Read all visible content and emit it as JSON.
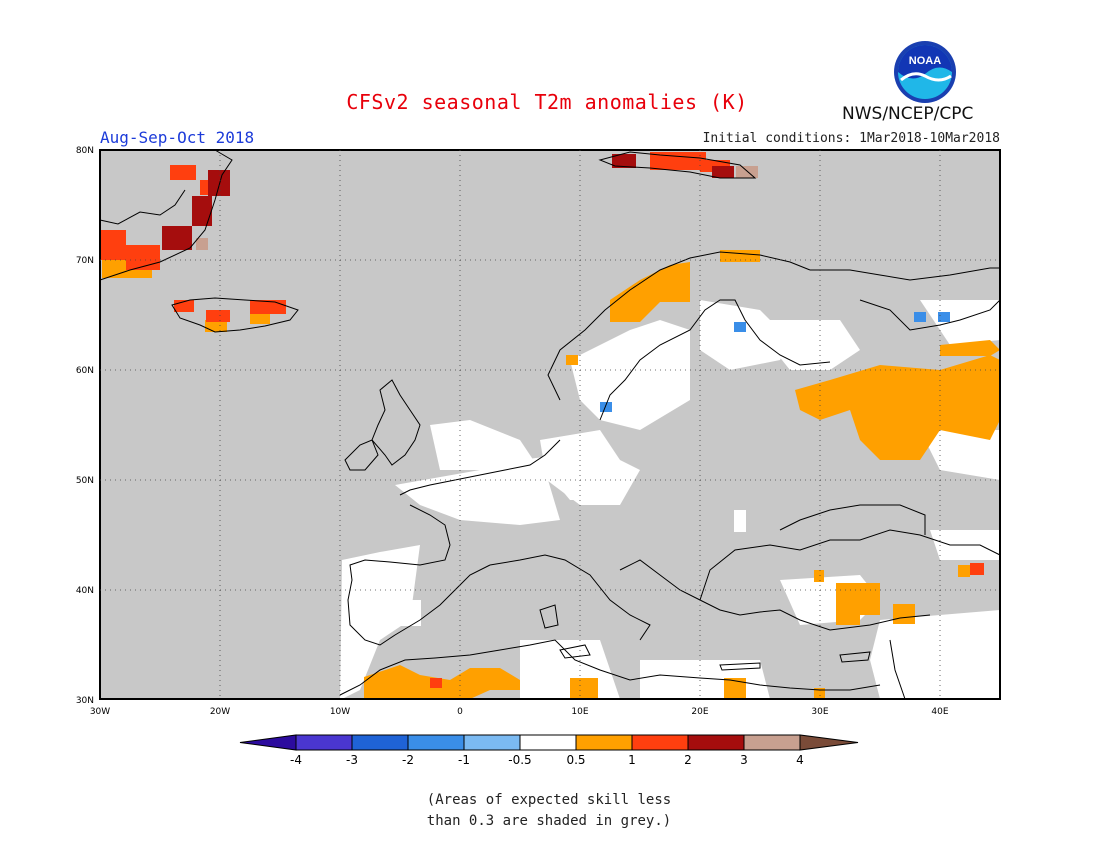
{
  "header": {
    "title": "CFSv2 seasonal T2m anomalies (K)",
    "season": "Aug-Sep-Oct 2018",
    "initial_conditions": "Initial conditions: 1Mar2018-10Mar2018",
    "agency": "NWS/NCEP/CPC",
    "logo_text": "NOAA"
  },
  "map": {
    "lat_labels": [
      "80N",
      "70N",
      "60N",
      "50N",
      "40N",
      "30N"
    ],
    "lon_labels": [
      "30W",
      "20W",
      "10W",
      "0",
      "10E",
      "20E",
      "30E",
      "40E"
    ],
    "background_color": "#c8c8c8",
    "coastline_color": "#000000"
  },
  "colorbar": {
    "tick_labels": [
      "-4",
      "-3",
      "-2",
      "-1",
      "-0.5",
      "0.5",
      "1",
      "2",
      "3",
      "4"
    ],
    "colors": [
      "#2c0b9e",
      "#4a36d0",
      "#1f63d6",
      "#3a8ee8",
      "#7bbaf2",
      "#ffffff",
      "#ffa000",
      "#ff3f0f",
      "#a50d0d",
      "#c8a090",
      "#7a4b38"
    ]
  },
  "footnote": {
    "line1": "(Areas of expected skill less",
    "line2": "than 0.3 are shaded in grey.)"
  }
}
